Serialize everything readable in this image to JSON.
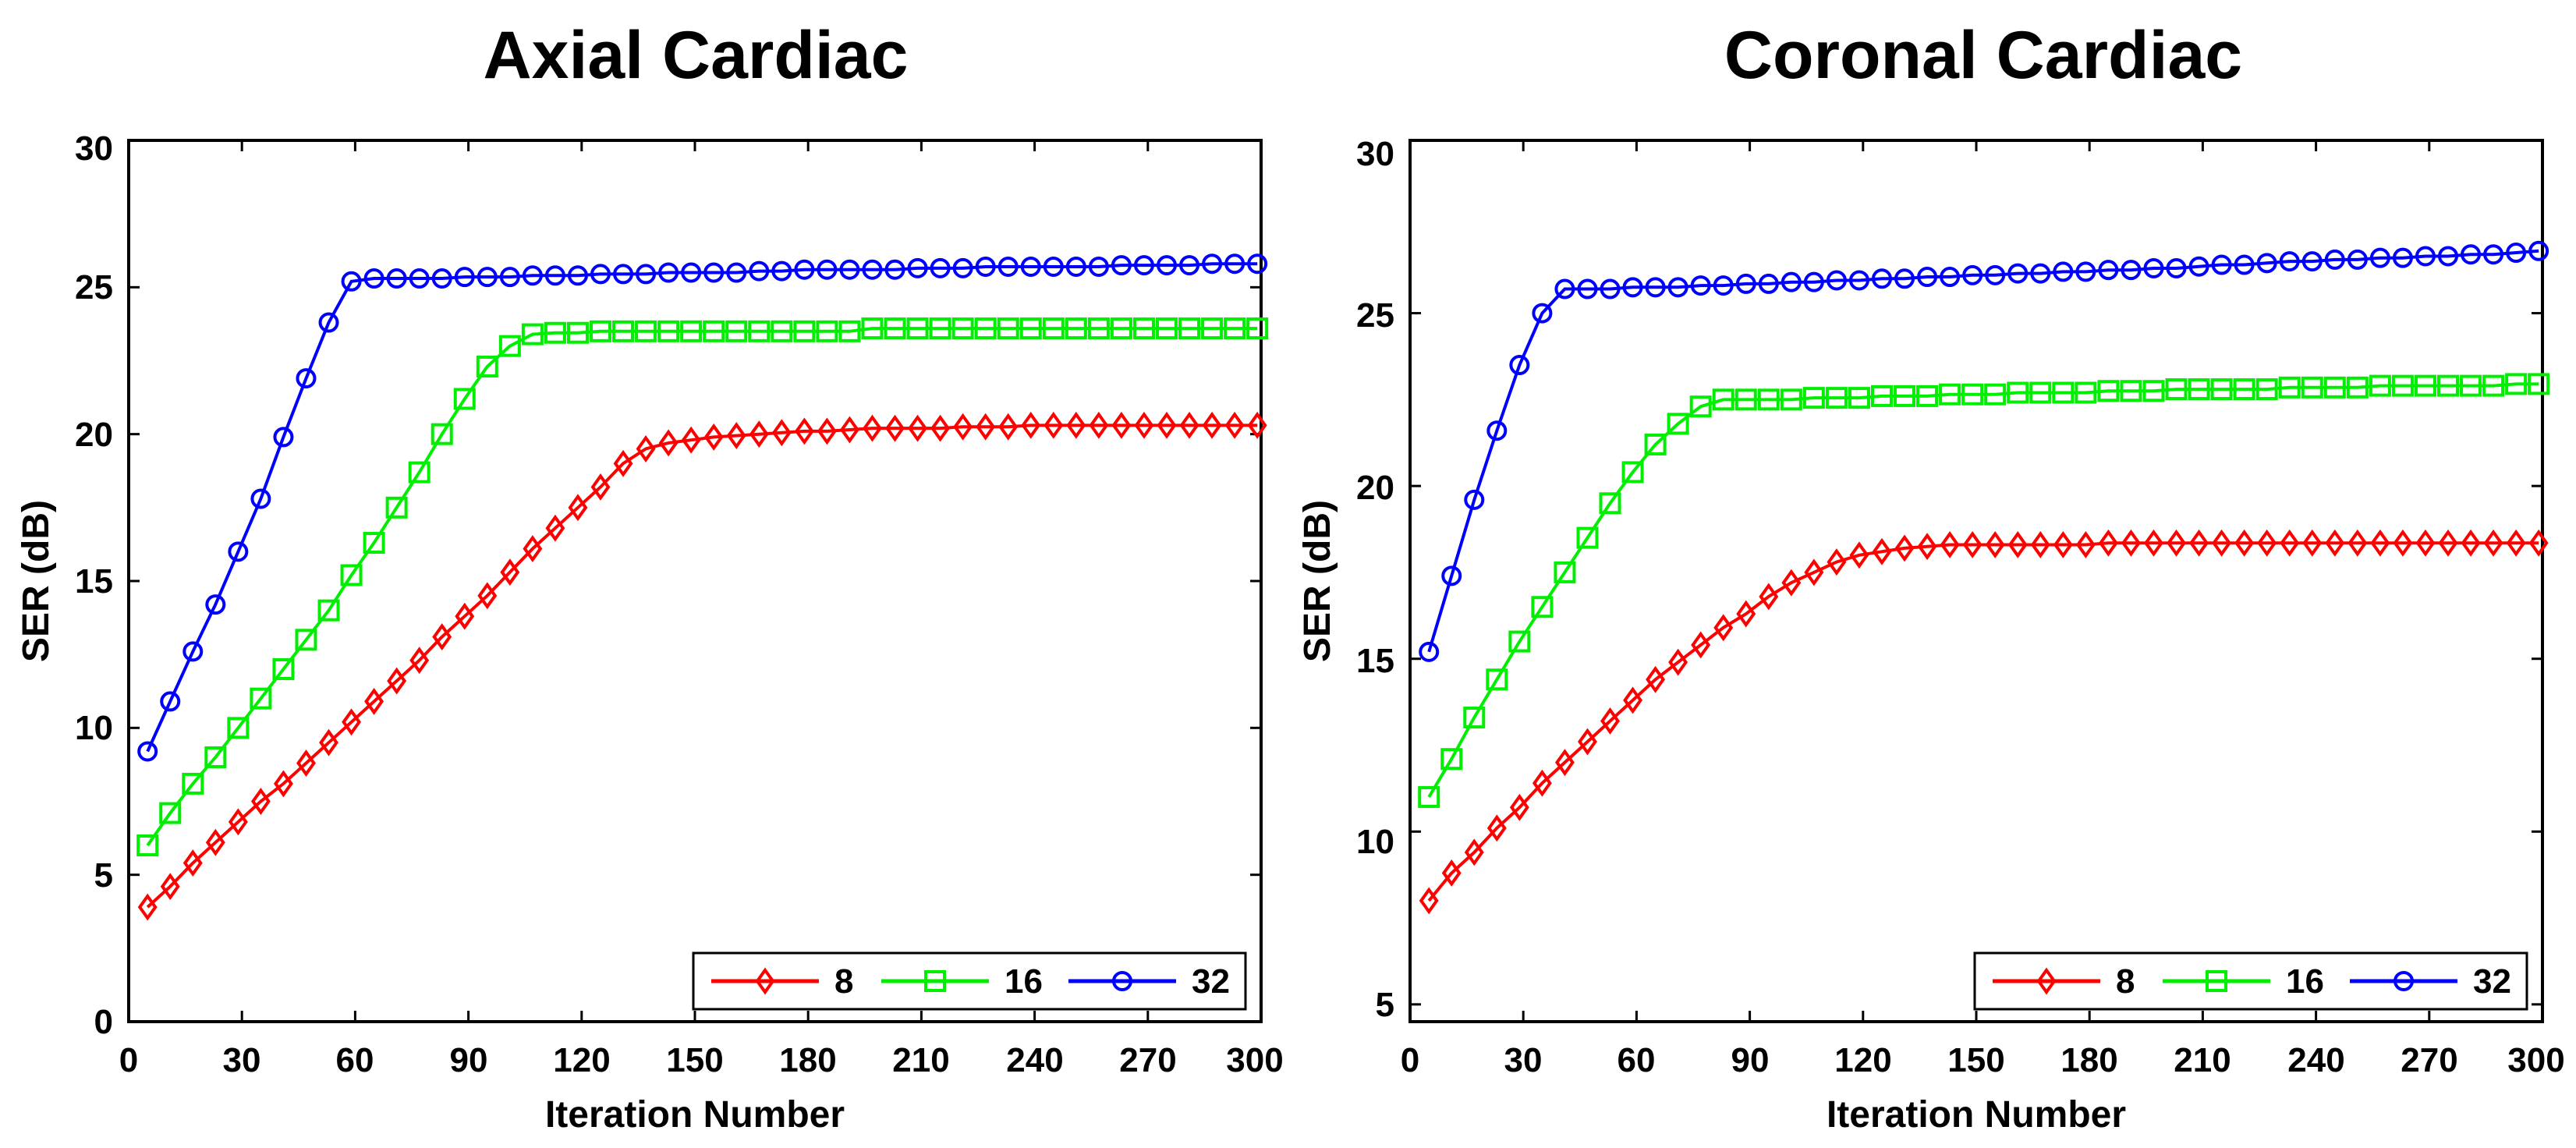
{
  "chart_data": [
    {
      "type": "line",
      "title": "Axial Cardiac",
      "xlabel": "Iteration Number",
      "ylabel": "SER (dB)",
      "xlim": [
        0,
        300
      ],
      "ylim": [
        0,
        30
      ],
      "x_ticks": [
        0,
        30,
        60,
        90,
        120,
        150,
        180,
        210,
        240,
        270,
        300
      ],
      "y_ticks": [
        0,
        5,
        10,
        15,
        20,
        25,
        30
      ],
      "x_tick_labels": [
        "0",
        "30",
        "60",
        "90",
        "120",
        "150",
        "180",
        "210",
        "240",
        "270",
        "300"
      ],
      "y_tick_labels": [
        "0",
        "5",
        "10",
        "15",
        "20",
        "25",
        "30"
      ],
      "legend_location": "bottom-right",
      "x": [
        5,
        11,
        17,
        23,
        29,
        35,
        41,
        47,
        53,
        59,
        65,
        71,
        77,
        83,
        89,
        95,
        101,
        107,
        113,
        119,
        125,
        131,
        137,
        143,
        149,
        155,
        161,
        167,
        173,
        179,
        185,
        191,
        197,
        203,
        209,
        215,
        221,
        227,
        233,
        239,
        245,
        251,
        257,
        263,
        269,
        275,
        281,
        287,
        293,
        299
      ],
      "series": [
        {
          "name": "8",
          "color": "#ff0000",
          "marker": "diamond",
          "values": [
            3.9,
            4.6,
            5.4,
            6.1,
            6.8,
            7.5,
            8.1,
            8.8,
            9.5,
            10.2,
            10.9,
            11.6,
            12.3,
            13.1,
            13.8,
            14.5,
            15.3,
            16.1,
            16.8,
            17.5,
            18.2,
            19.0,
            19.5,
            19.7,
            19.8,
            19.9,
            19.95,
            20.0,
            20.05,
            20.1,
            20.1,
            20.15,
            20.2,
            20.2,
            20.2,
            20.2,
            20.25,
            20.25,
            20.25,
            20.3,
            20.3,
            20.3,
            20.3,
            20.3,
            20.3,
            20.3,
            20.3,
            20.3,
            20.3,
            20.3
          ]
        },
        {
          "name": "16",
          "color": "#00ee00",
          "marker": "square",
          "values": [
            6.0,
            7.1,
            8.1,
            9.0,
            10.0,
            11.0,
            12.0,
            13.0,
            14.0,
            15.2,
            16.3,
            17.5,
            18.7,
            20.0,
            21.2,
            22.3,
            23.0,
            23.4,
            23.45,
            23.45,
            23.5,
            23.5,
            23.5,
            23.5,
            23.5,
            23.5,
            23.5,
            23.5,
            23.5,
            23.5,
            23.5,
            23.5,
            23.6,
            23.6,
            23.6,
            23.6,
            23.6,
            23.6,
            23.6,
            23.6,
            23.6,
            23.6,
            23.6,
            23.6,
            23.6,
            23.6,
            23.6,
            23.6,
            23.6,
            23.6
          ]
        },
        {
          "name": "32",
          "color": "#0000ff",
          "marker": "circle",
          "values": [
            9.2,
            10.9,
            12.6,
            14.2,
            16.0,
            17.8,
            19.9,
            21.9,
            23.8,
            25.2,
            25.3,
            25.3,
            25.3,
            25.3,
            25.35,
            25.35,
            25.35,
            25.4,
            25.4,
            25.4,
            25.45,
            25.45,
            25.45,
            25.5,
            25.5,
            25.5,
            25.5,
            25.55,
            25.55,
            25.6,
            25.6,
            25.6,
            25.6,
            25.6,
            25.65,
            25.65,
            25.65,
            25.7,
            25.7,
            25.7,
            25.7,
            25.7,
            25.7,
            25.75,
            25.75,
            25.75,
            25.75,
            25.8,
            25.8,
            25.8
          ]
        }
      ]
    },
    {
      "type": "line",
      "title": "Coronal Cardiac",
      "xlabel": "Iteration Number",
      "ylabel": "SER (dB)",
      "xlim": [
        0,
        300
      ],
      "ylim": [
        4.5,
        30
      ],
      "x_ticks": [
        0,
        30,
        60,
        90,
        120,
        150,
        180,
        210,
        240,
        270,
        300
      ],
      "y_ticks": [
        5,
        10,
        15,
        20,
        25,
        30
      ],
      "x_tick_labels": [
        "0",
        "30",
        "60",
        "90",
        "120",
        "150",
        "180",
        "210",
        "240",
        "270",
        "300"
      ],
      "y_tick_labels": [
        "5",
        "10",
        "15",
        "20",
        "25",
        "30"
      ],
      "legend_location": "bottom-right",
      "x": [
        5,
        11,
        17,
        23,
        29,
        35,
        41,
        47,
        53,
        59,
        65,
        71,
        77,
        83,
        89,
        95,
        101,
        107,
        113,
        119,
        125,
        131,
        137,
        143,
        149,
        155,
        161,
        167,
        173,
        179,
        185,
        191,
        197,
        203,
        209,
        215,
        221,
        227,
        233,
        239,
        245,
        251,
        257,
        263,
        269,
        275,
        281,
        287,
        293,
        299
      ],
      "series": [
        {
          "name": "8",
          "color": "#ff0000",
          "marker": "diamond",
          "values": [
            8.0,
            8.8,
            9.4,
            10.1,
            10.7,
            11.4,
            12.0,
            12.6,
            13.2,
            13.8,
            14.4,
            14.9,
            15.4,
            15.9,
            16.3,
            16.8,
            17.2,
            17.5,
            17.8,
            18.0,
            18.1,
            18.2,
            18.25,
            18.3,
            18.3,
            18.3,
            18.3,
            18.3,
            18.3,
            18.3,
            18.35,
            18.35,
            18.35,
            18.35,
            18.35,
            18.35,
            18.35,
            18.35,
            18.35,
            18.35,
            18.35,
            18.35,
            18.35,
            18.35,
            18.35,
            18.35,
            18.35,
            18.35,
            18.35,
            18.35
          ]
        },
        {
          "name": "16",
          "color": "#00ee00",
          "marker": "square",
          "values": [
            11.0,
            12.1,
            13.3,
            14.4,
            15.5,
            16.5,
            17.5,
            18.5,
            19.5,
            20.4,
            21.2,
            21.8,
            22.3,
            22.5,
            22.5,
            22.5,
            22.5,
            22.55,
            22.55,
            22.55,
            22.6,
            22.6,
            22.6,
            22.65,
            22.65,
            22.65,
            22.7,
            22.7,
            22.7,
            22.7,
            22.75,
            22.75,
            22.75,
            22.8,
            22.8,
            22.8,
            22.8,
            22.8,
            22.85,
            22.85,
            22.85,
            22.85,
            22.9,
            22.9,
            22.9,
            22.9,
            22.9,
            22.9,
            22.95,
            22.95
          ]
        },
        {
          "name": "32",
          "color": "#0000ff",
          "marker": "circle",
          "values": [
            15.2,
            17.4,
            19.6,
            21.6,
            23.5,
            25.0,
            25.7,
            25.7,
            25.7,
            25.75,
            25.75,
            25.75,
            25.8,
            25.8,
            25.85,
            25.85,
            25.9,
            25.9,
            25.95,
            25.95,
            26.0,
            26.0,
            26.05,
            26.05,
            26.1,
            26.1,
            26.15,
            26.15,
            26.2,
            26.2,
            26.25,
            26.25,
            26.3,
            26.3,
            26.35,
            26.4,
            26.4,
            26.45,
            26.5,
            26.5,
            26.55,
            26.55,
            26.6,
            26.6,
            26.65,
            26.65,
            26.7,
            26.7,
            26.75,
            26.8
          ]
        }
      ]
    }
  ]
}
